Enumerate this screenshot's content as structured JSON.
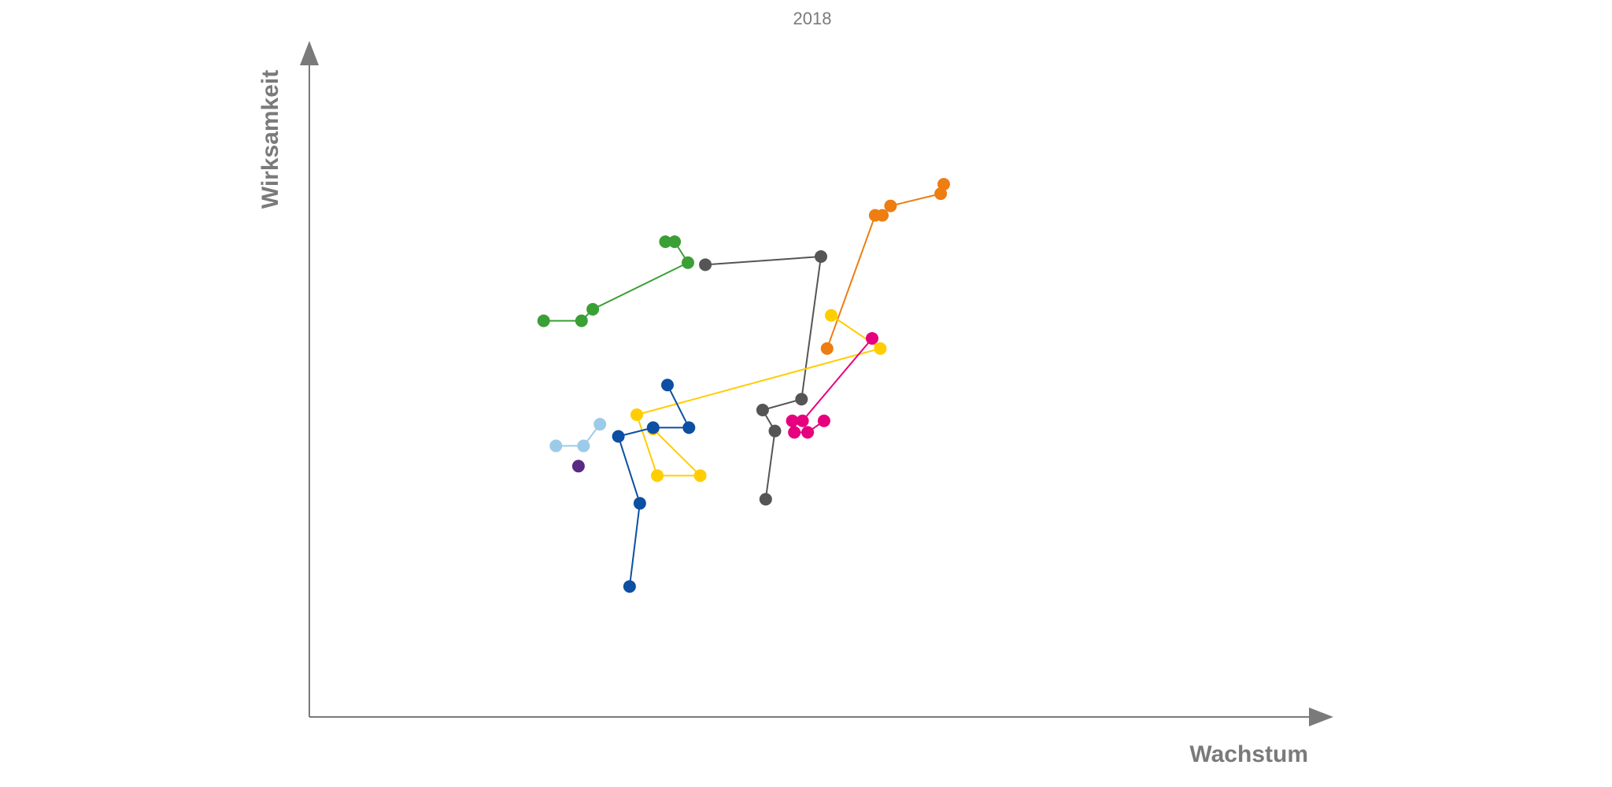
{
  "chart_data": {
    "type": "line",
    "title": "2018",
    "xlabel": "Wachstum",
    "ylabel": "Wirksamkeit",
    "xlim": [
      0,
      100
    ],
    "ylim": [
      0,
      100
    ],
    "grid": false,
    "legend": "none",
    "series": [
      {
        "color": "#3a9f35",
        "points": [
          [
            22.9,
            58.6
          ],
          [
            26.6,
            58.6
          ],
          [
            27.7,
            60.3
          ],
          [
            37.0,
            67.2
          ],
          [
            35.7,
            70.3
          ],
          [
            34.8,
            70.3
          ]
        ]
      },
      {
        "color": "#555555",
        "points": [
          [
            38.7,
            66.9
          ],
          [
            50.0,
            68.1
          ],
          [
            48.1,
            47.0
          ],
          [
            44.3,
            45.4
          ],
          [
            45.5,
            42.3
          ],
          [
            44.6,
            32.2
          ]
        ]
      },
      {
        "color": "#ee7d12",
        "points": [
          [
            50.6,
            54.5
          ],
          [
            55.3,
            74.2
          ],
          [
            56.0,
            74.2
          ],
          [
            56.8,
            75.6
          ],
          [
            61.7,
            77.4
          ],
          [
            62.0,
            78.8
          ]
        ]
      },
      {
        "color": "#ffcd00",
        "points": [
          [
            51.0,
            59.4
          ],
          [
            55.8,
            54.5
          ],
          [
            32.0,
            44.7
          ],
          [
            34.0,
            35.7
          ],
          [
            38.2,
            35.7
          ],
          [
            33.6,
            42.6
          ]
        ]
      },
      {
        "color": "#e6007e",
        "points": [
          [
            55.0,
            56.0
          ],
          [
            48.2,
            43.8
          ],
          [
            47.2,
            43.8
          ],
          [
            47.4,
            42.1
          ],
          [
            48.7,
            42.1
          ],
          [
            50.3,
            43.8
          ]
        ]
      },
      {
        "color": "#0c4fa3",
        "points": [
          [
            35.0,
            49.1
          ],
          [
            37.1,
            42.8
          ],
          [
            33.6,
            42.8
          ],
          [
            30.2,
            41.5
          ],
          [
            32.3,
            31.6
          ],
          [
            31.3,
            19.3
          ]
        ]
      },
      {
        "color": "#9ccbe9",
        "points": [
          [
            28.4,
            43.3
          ],
          [
            26.8,
            40.1
          ],
          [
            24.1,
            40.1
          ]
        ]
      },
      {
        "color": "#5a2a82",
        "points": [
          [
            26.3,
            37.1
          ]
        ]
      }
    ]
  }
}
